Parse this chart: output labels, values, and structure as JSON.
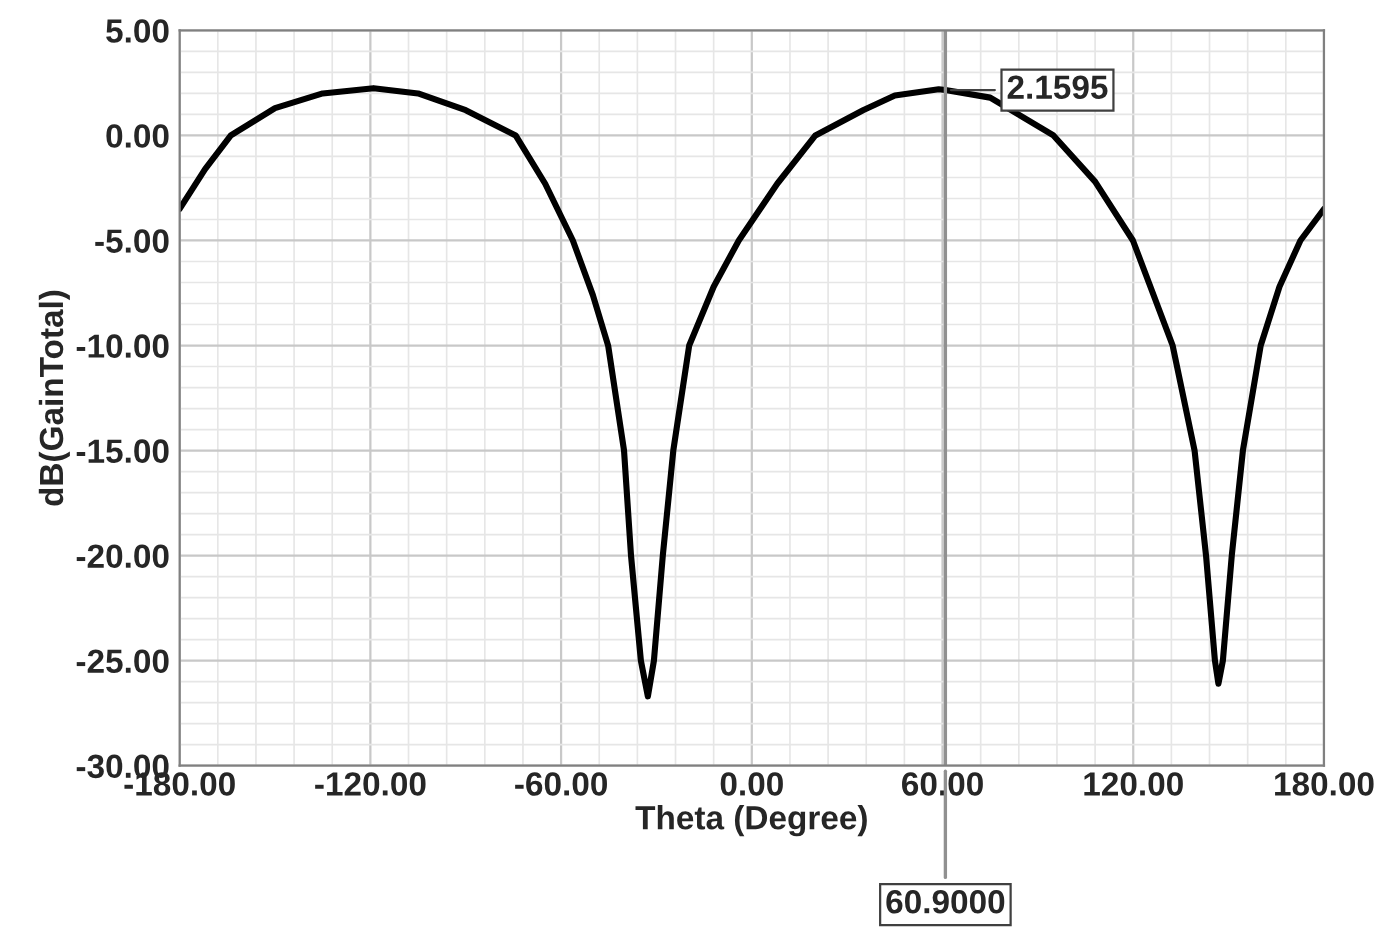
{
  "chart_data": {
    "type": "line",
    "xlabel": "Theta (Degree)",
    "ylabel": "dB(GainTotal)",
    "x": [
      -180,
      -172,
      -163.9,
      -150,
      -135,
      -119,
      -105,
      -90,
      -74.3,
      -65,
      -56.3,
      -50,
      -45.2,
      -40.2,
      -38.0,
      -34.9,
      -32.7,
      -30.8,
      -28.0,
      -24.7,
      -19.7,
      -12,
      -4.1,
      8,
      20.0,
      35,
      45,
      58.8,
      60.9,
      75,
      85,
      94.9,
      108,
      119.9,
      132.4,
      139.3,
      142.9,
      145.7,
      146.8,
      148.2,
      151.0,
      154.5,
      160.1,
      166,
      172.6,
      180
    ],
    "series": [
      {
        "color": "#000000",
        "values": [
          -3.5,
          -1.6,
          0.0,
          1.3,
          2.0,
          2.25,
          2.0,
          1.2,
          0.0,
          -2.3,
          -5.0,
          -7.6,
          -10.0,
          -15.0,
          -20.0,
          -25.0,
          -26.7,
          -25.0,
          -20.0,
          -15.0,
          -10.0,
          -7.2,
          -5.0,
          -2.3,
          0.0,
          1.2,
          1.9,
          2.2,
          2.1595,
          1.8,
          0.9,
          0.0,
          -2.2,
          -5.0,
          -10.0,
          -15.0,
          -20.0,
          -25.0,
          -26.1,
          -25.0,
          -20.0,
          -15.0,
          -10.0,
          -7.2,
          -5.0,
          -3.5
        ]
      }
    ],
    "xlim": [
      -180,
      180
    ],
    "xticks": [
      {
        "value": -180,
        "label": "-180.00"
      },
      {
        "value": -120,
        "label": "-120.00"
      },
      {
        "value": -60,
        "label": "-60.00"
      },
      {
        "value": 0,
        "label": "0.00"
      },
      {
        "value": 60,
        "label": "60.00"
      },
      {
        "value": 120,
        "label": "120.00"
      },
      {
        "value": 180,
        "label": "180.00"
      }
    ],
    "ylim": [
      -30,
      5
    ],
    "yticks": [
      {
        "value": -30,
        "label": "-30.00"
      },
      {
        "value": -25,
        "label": "-25.00"
      },
      {
        "value": -20,
        "label": "-20.00"
      },
      {
        "value": -15,
        "label": "-15.00"
      },
      {
        "value": -10,
        "label": "-10.00"
      },
      {
        "value": -5,
        "label": "-5.00"
      },
      {
        "value": 0,
        "label": "0.00"
      },
      {
        "value": 5,
        "label": "5.00"
      }
    ],
    "ref_lines": [
      {
        "axis": "x",
        "value": 60.9,
        "label": "60.9000",
        "color": "#909090"
      }
    ],
    "annotations": [
      {
        "text": "2.1595",
        "x": 60.9,
        "y": 2.1595
      }
    ],
    "grid": true,
    "legend": false,
    "line_style": "solid",
    "marker": "none"
  }
}
